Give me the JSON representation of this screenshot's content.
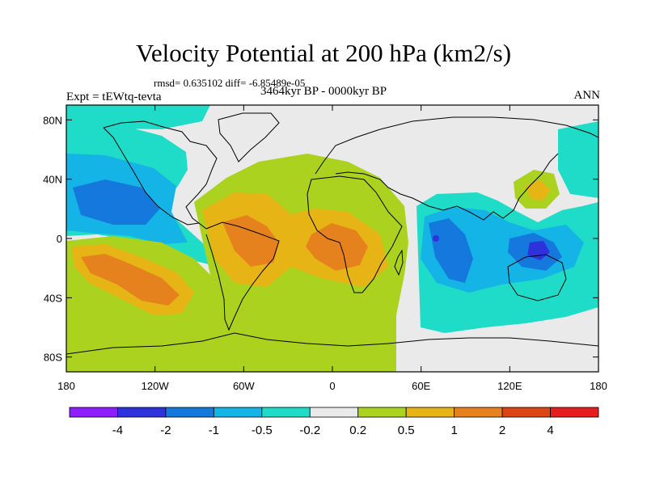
{
  "chart_data": {
    "type": "heatmap",
    "title": "Velocity Potential at 200 hPa (km2/s)",
    "stats_line": "rmsd= 0.635102 diff= -6.85489e-05",
    "left_label": "Expt = tEWtq-tevta",
    "center_label": "3464kyr BP - 0000kyr BP",
    "right_label": "ANN",
    "projection": "cylindrical-equidistant",
    "x_range": [
      -180,
      180
    ],
    "y_range": [
      -90,
      90
    ],
    "x_ticks": [
      {
        "value": -180,
        "label": "180"
      },
      {
        "value": -120,
        "label": "120W"
      },
      {
        "value": -60,
        "label": "60W"
      },
      {
        "value": 0,
        "label": "0"
      },
      {
        "value": 60,
        "label": "60E"
      },
      {
        "value": 120,
        "label": "120E"
      },
      {
        "value": 180,
        "label": "180"
      }
    ],
    "y_ticks": [
      {
        "value": 80,
        "label": "80N"
      },
      {
        "value": 40,
        "label": "40N"
      },
      {
        "value": 0,
        "label": "0"
      },
      {
        "value": -40,
        "label": "40S"
      },
      {
        "value": -80,
        "label": "80S"
      }
    ],
    "colorbar": {
      "levels": [
        "-4",
        "-2",
        "-1",
        "-0.5",
        "-0.2",
        "0.2",
        "0.5",
        "1",
        "2",
        "4"
      ],
      "colors": [
        "#8c1eff",
        "#2d32dc",
        "#1478dc",
        "#14b4e6",
        "#1edcc8",
        "#eaeaea",
        "#aad21e",
        "#e6b414",
        "#e6821e",
        "#dc4614",
        "#e61e1e"
      ]
    },
    "features": [
      {
        "name": "north-pacific-negative",
        "lon": -150,
        "lat": 32,
        "value": -1.5
      },
      {
        "name": "south-pacific-positive",
        "lon": -135,
        "lat": -25,
        "value": 1.5
      },
      {
        "name": "south-america-positive",
        "lon": -65,
        "lat": -5,
        "value": 1.5
      },
      {
        "name": "africa-positive",
        "lon": 10,
        "lat": -5,
        "value": 1.5
      },
      {
        "name": "indian-ocean-negative",
        "lon": 75,
        "lat": -10,
        "value": -1.5
      },
      {
        "name": "maritime-continent-negative",
        "lon": 125,
        "lat": -5,
        "value": -1.2
      },
      {
        "name": "japan-positive",
        "lon": 140,
        "lat": 35,
        "value": 0.8
      }
    ]
  }
}
